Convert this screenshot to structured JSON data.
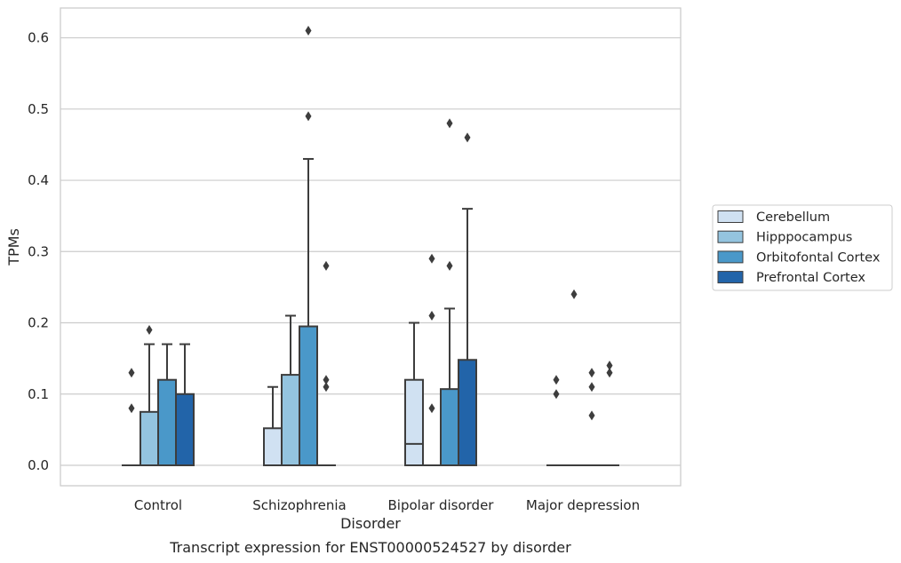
{
  "chart_data": {
    "type": "box",
    "title": "",
    "caption": "Transcript expression for ENST00000524527 by disorder",
    "xlabel": "Disorder",
    "ylabel": "TPMs",
    "ylim": [
      -0.03,
      0.64
    ],
    "yticks": [
      "0.0",
      "0.1",
      "0.2",
      "0.3",
      "0.4",
      "0.5",
      "0.6"
    ],
    "ytick_values": [
      0.0,
      0.1,
      0.2,
      0.3,
      0.4,
      0.5,
      0.6
    ],
    "grid": "horizontal",
    "legend_position": "center-right",
    "categories": [
      "Control",
      "Schizophrenia",
      "Bipolar disorder",
      "Major depression"
    ],
    "series": [
      {
        "name": "Cerebellum",
        "color": "#d0e1f2",
        "boxes": [
          {
            "min": 0,
            "q1": 0,
            "median": 0,
            "q3": 0,
            "max": 0,
            "outliers": [
              0.08,
              0.13
            ]
          },
          {
            "min": 0,
            "q1": 0,
            "median": 0,
            "q3": 0.052,
            "max": 0.11,
            "outliers": []
          },
          {
            "min": 0,
            "q1": 0,
            "median": 0.03,
            "q3": 0.12,
            "max": 0.2,
            "outliers": []
          },
          {
            "min": 0,
            "q1": 0,
            "median": 0,
            "q3": 0,
            "max": 0,
            "outliers": [
              0.1,
              0.12
            ]
          }
        ]
      },
      {
        "name": "Hipppocampus",
        "color": "#94c4df",
        "boxes": [
          {
            "min": 0,
            "q1": 0,
            "median": 0,
            "q3": 0.075,
            "max": 0.17,
            "outliers": [
              0.19
            ]
          },
          {
            "min": 0,
            "q1": 0,
            "median": 0,
            "q3": 0.127,
            "max": 0.21,
            "outliers": []
          },
          {
            "min": 0,
            "q1": 0,
            "median": 0,
            "q3": 0,
            "max": 0,
            "outliers": [
              0.08,
              0.21,
              0.29
            ]
          },
          {
            "min": 0,
            "q1": 0,
            "median": 0,
            "q3": 0,
            "max": 0,
            "outliers": [
              0.24
            ]
          }
        ]
      },
      {
        "name": "Orbitofontal Cortex",
        "color": "#4a98c9",
        "boxes": [
          {
            "min": 0,
            "q1": 0,
            "median": 0,
            "q3": 0.12,
            "max": 0.17,
            "outliers": []
          },
          {
            "min": 0,
            "q1": 0,
            "median": 0,
            "q3": 0.195,
            "max": 0.43,
            "outliers": [
              0.49,
              0.61
            ]
          },
          {
            "min": 0,
            "q1": 0,
            "median": 0,
            "q3": 0.107,
            "max": 0.22,
            "outliers": [
              0.28,
              0.48
            ]
          },
          {
            "min": 0,
            "q1": 0,
            "median": 0,
            "q3": 0,
            "max": 0,
            "outliers": [
              0.07,
              0.11,
              0.13
            ]
          }
        ]
      },
      {
        "name": "Prefrontal Cortex",
        "color": "#2264a9",
        "boxes": [
          {
            "min": 0,
            "q1": 0,
            "median": 0,
            "q3": 0.1,
            "max": 0.17,
            "outliers": []
          },
          {
            "min": 0,
            "q1": 0,
            "median": 0,
            "q3": 0,
            "max": 0,
            "outliers": [
              0.11,
              0.12,
              0.28
            ]
          },
          {
            "min": 0,
            "q1": 0,
            "median": 0,
            "q3": 0.148,
            "max": 0.36,
            "outliers": [
              0.46
            ]
          },
          {
            "min": 0,
            "q1": 0,
            "median": 0,
            "q3": 0,
            "max": 0,
            "outliers": [
              0.13,
              0.14
            ]
          }
        ]
      }
    ]
  }
}
